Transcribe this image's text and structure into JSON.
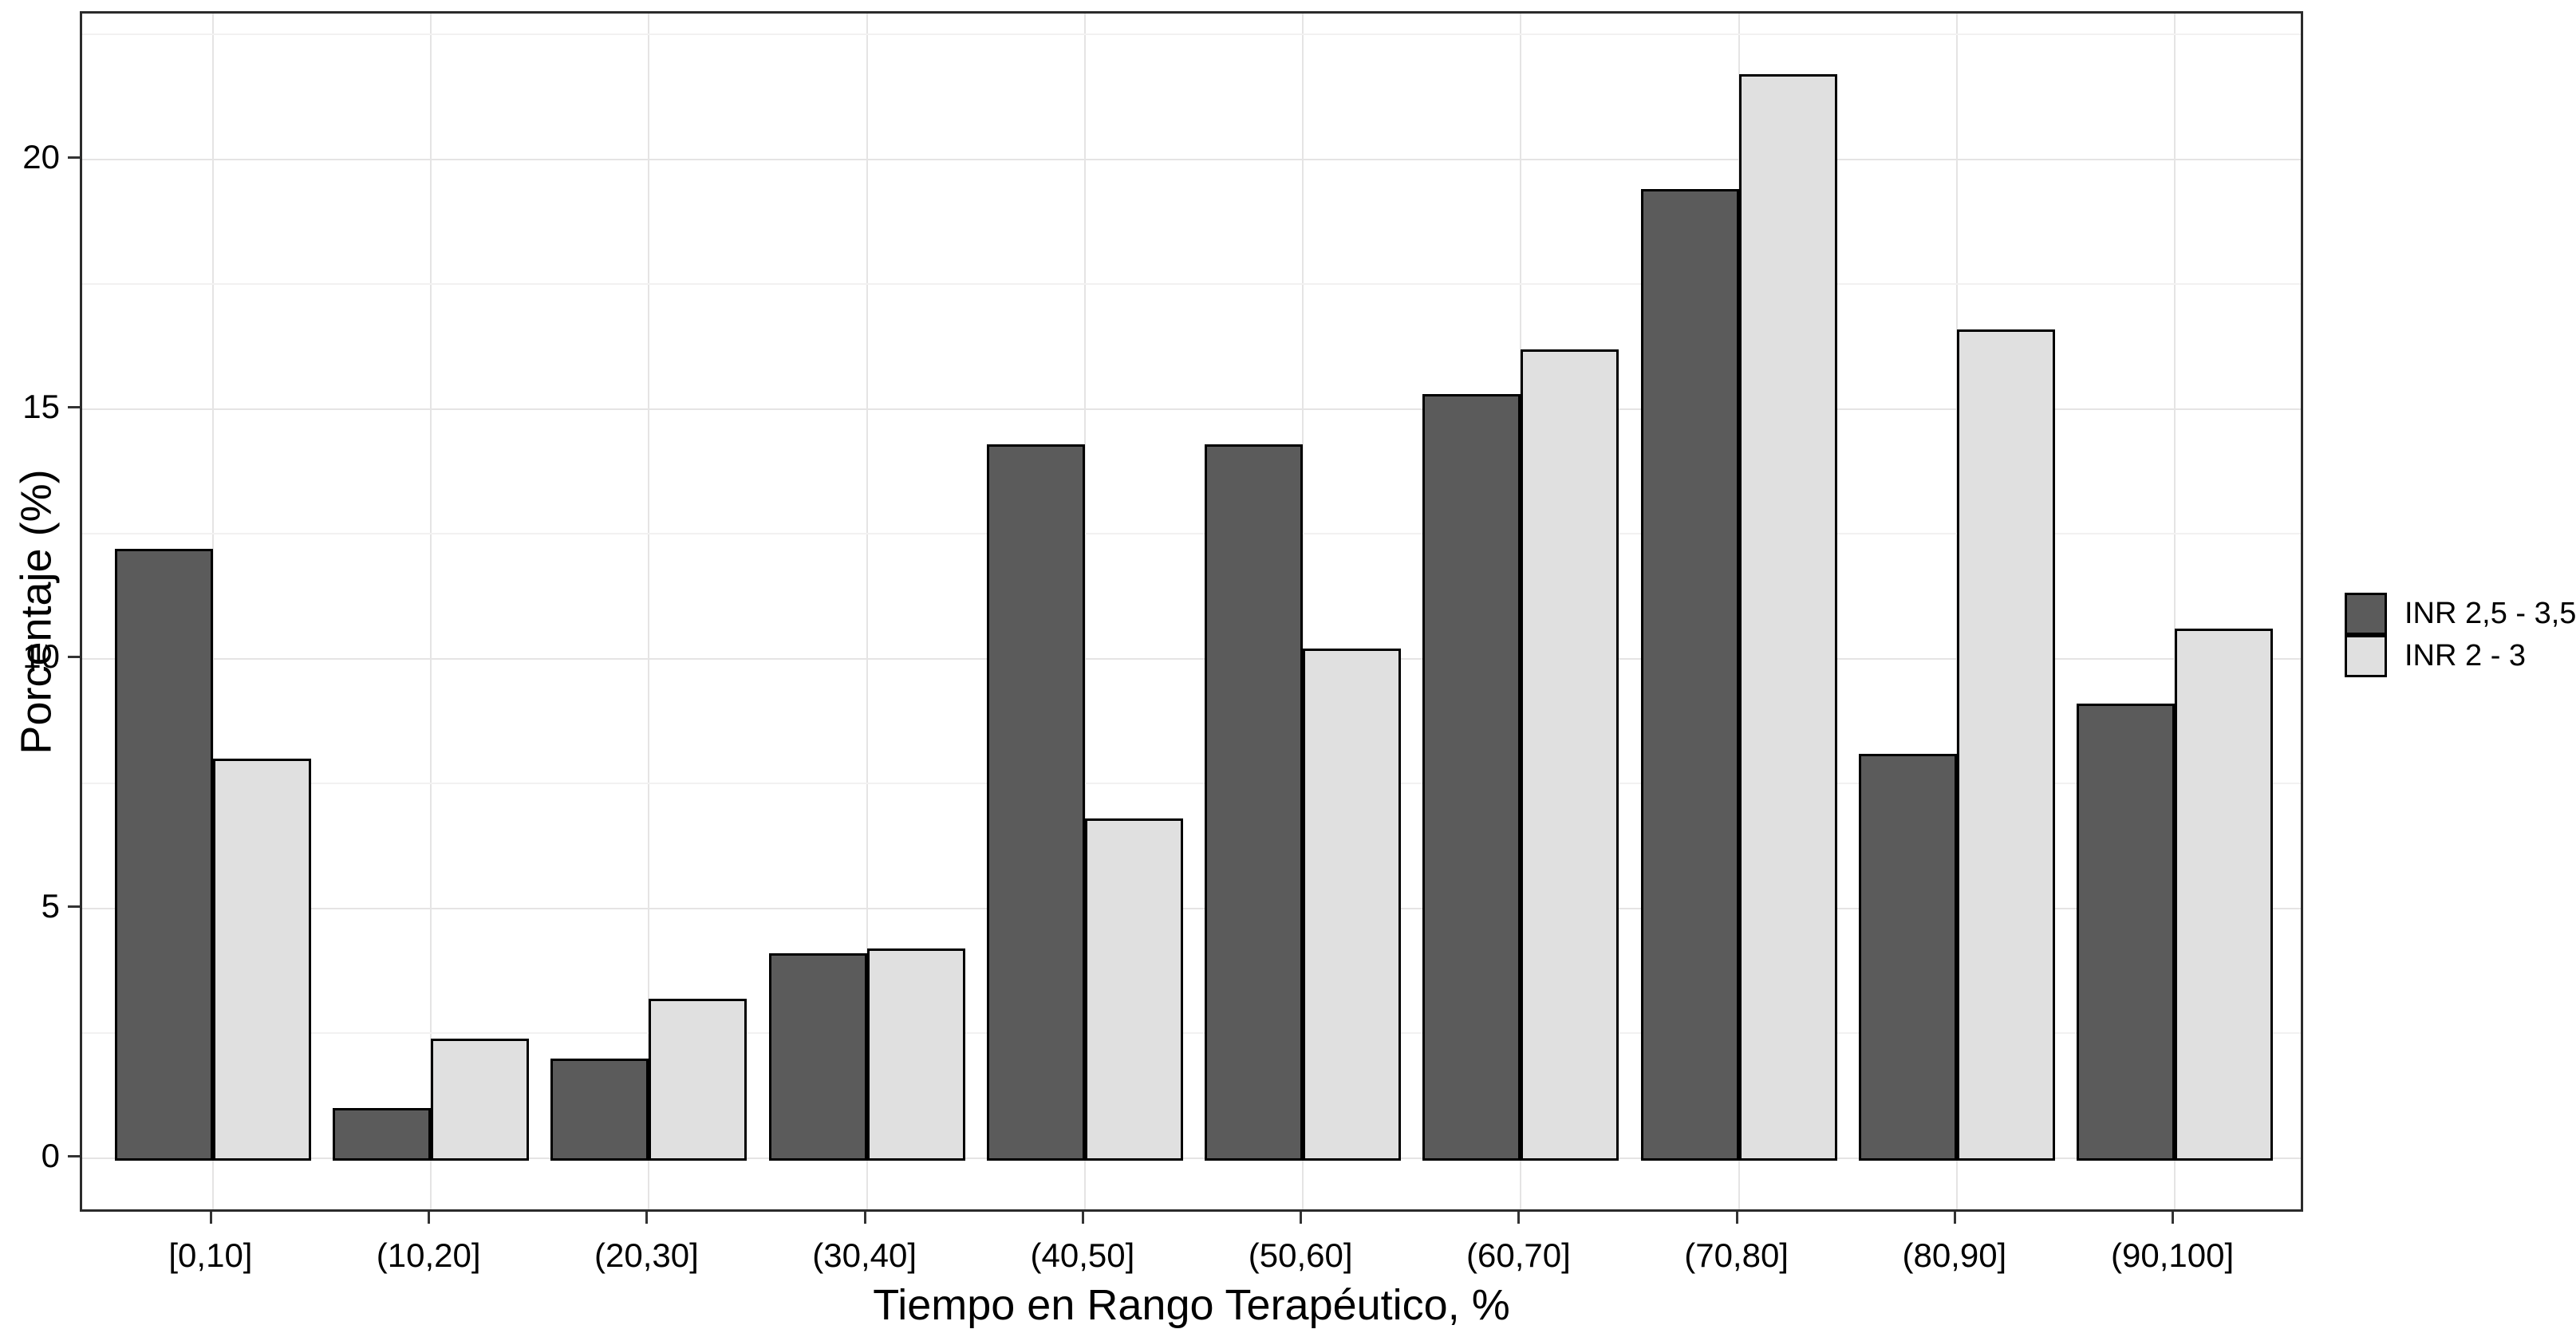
{
  "chart_data": {
    "type": "bar",
    "title": "",
    "categories": [
      "[0,10]",
      "(10,20]",
      "(20,30]",
      "(30,40]",
      "(40,50]",
      "(50,60]",
      "(60,70]",
      "(70,80]",
      "(80,90]",
      "(90,100]"
    ],
    "series": [
      {
        "name": "INR 2,5 - 3,5",
        "color": "#5B5B5B",
        "values": [
          12.2,
          1.0,
          2.0,
          4.1,
          14.3,
          14.3,
          15.3,
          19.4,
          8.1,
          9.1
        ]
      },
      {
        "name": "INR 2 - 3",
        "color": "#E0E0E0",
        "values": [
          8.0,
          2.4,
          3.2,
          4.2,
          6.8,
          10.2,
          16.2,
          21.7,
          16.6,
          10.6
        ]
      }
    ],
    "xlabel": "Tiempo en Rango Terapéutico, %",
    "ylabel": "Porcentaje (%)",
    "ylim": [
      0,
      22.9
    ],
    "yticks": [
      "0",
      "5",
      "10",
      "15",
      "20"
    ],
    "ytick_values": [
      0,
      5,
      10,
      15,
      20
    ],
    "minor_grid_values": [
      2.5,
      7.5,
      12.5,
      17.5,
      22.5
    ],
    "grid": true,
    "legend_position": "right-middle",
    "colors": {
      "bar_outline": "#000000",
      "panel_border": "#2B2B2B",
      "grid_major": "#E5E4E4",
      "grid_minor": "#F2F1F1",
      "text": "#000000",
      "background": "#FFFFFF"
    }
  }
}
